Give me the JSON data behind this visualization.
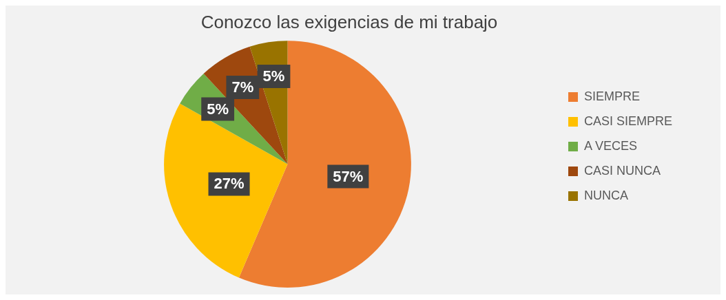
{
  "chart_data": {
    "type": "pie",
    "title": "Conozco las exigencias de mi trabajo",
    "categories": [
      "SIEMPRE",
      "CASI SIEMPRE",
      "A VECES",
      "CASI NUNCA",
      "NUNCA"
    ],
    "values": [
      57,
      27,
      5,
      7,
      5
    ],
    "colors": [
      "#ed7d31",
      "#ffc000",
      "#70ad47",
      "#9e480e",
      "#997300"
    ],
    "value_labels": [
      "57%",
      "27%",
      "5%",
      "7%",
      "5%"
    ],
    "legend": "right"
  }
}
